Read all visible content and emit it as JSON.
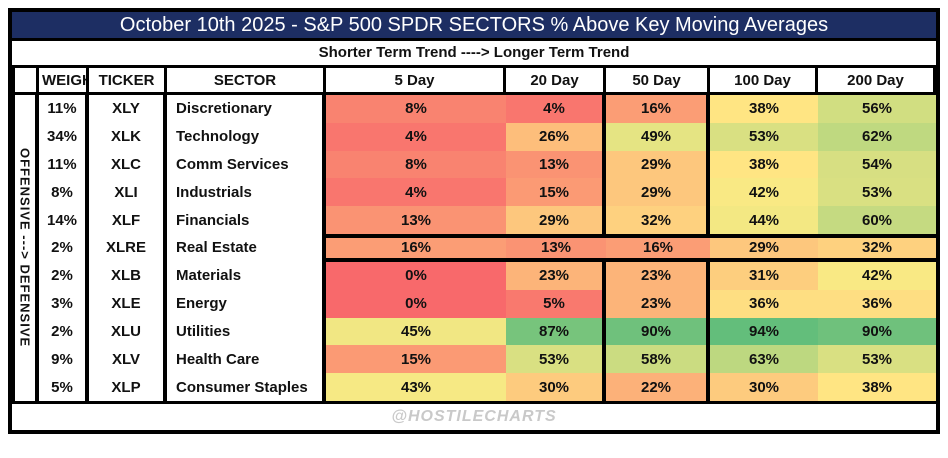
{
  "watermark": "@HOSTILECHARTS",
  "colors": {
    "title_bg": "#1d2e63",
    "title_text": "#ffffff",
    "border": "#000000",
    "watermark_text": "#c9c9c9"
  },
  "chart_data": {
    "type": "heatmap",
    "title": "October 10th 2025 - S&P 500 SPDR SECTORS  % Above Key Moving Averages",
    "subtitle": "Shorter Term Trend ----> Longer Term  Trend",
    "row_axis_label": "OFFENSIVE ---> DEFENSIVE",
    "headers": [
      "",
      "WEIGHT",
      "TICKER",
      "SECTOR",
      "5 Day",
      "20 Day",
      "50 Day",
      "100 Day",
      "200 Day"
    ],
    "value_columns": [
      "5 Day",
      "20 Day",
      "50 Day",
      "100 Day",
      "200 Day"
    ],
    "unit": "%",
    "rows": [
      {
        "weight": "11%",
        "ticker": "XLY",
        "sector": "Discretionary",
        "values": [
          8,
          4,
          16,
          38,
          56
        ]
      },
      {
        "weight": "34%",
        "ticker": "XLK",
        "sector": "Technology",
        "values": [
          4,
          26,
          49,
          53,
          62
        ]
      },
      {
        "weight": "11%",
        "ticker": "XLC",
        "sector": "Comm Services",
        "values": [
          8,
          13,
          29,
          38,
          54
        ]
      },
      {
        "weight": "8%",
        "ticker": "XLI",
        "sector": "Industrials",
        "values": [
          4,
          15,
          29,
          42,
          53
        ]
      },
      {
        "weight": "14%",
        "ticker": "XLF",
        "sector": "Financials",
        "values": [
          13,
          29,
          32,
          44,
          60
        ]
      },
      {
        "weight": "2%",
        "ticker": "XLRE",
        "sector": "Real Estate",
        "values": [
          16,
          13,
          16,
          29,
          32
        ],
        "divider": true
      },
      {
        "weight": "2%",
        "ticker": "XLB",
        "sector": "Materials",
        "values": [
          0,
          23,
          23,
          31,
          42
        ]
      },
      {
        "weight": "3%",
        "ticker": "XLE",
        "sector": "Energy",
        "values": [
          0,
          5,
          23,
          36,
          36
        ]
      },
      {
        "weight": "2%",
        "ticker": "XLU",
        "sector": "Utilities",
        "values": [
          45,
          87,
          90,
          94,
          90
        ]
      },
      {
        "weight": "9%",
        "ticker": "XLV",
        "sector": "Health Care",
        "values": [
          15,
          53,
          58,
          63,
          53
        ]
      },
      {
        "weight": "5%",
        "ticker": "XLP",
        "sector": "Consumer Staples",
        "values": [
          43,
          30,
          22,
          30,
          38
        ]
      }
    ],
    "color_scale": {
      "stops": [
        [
          0,
          "#f8696b"
        ],
        [
          40,
          "#ffeb84"
        ],
        [
          94,
          "#63be7b"
        ]
      ]
    }
  }
}
